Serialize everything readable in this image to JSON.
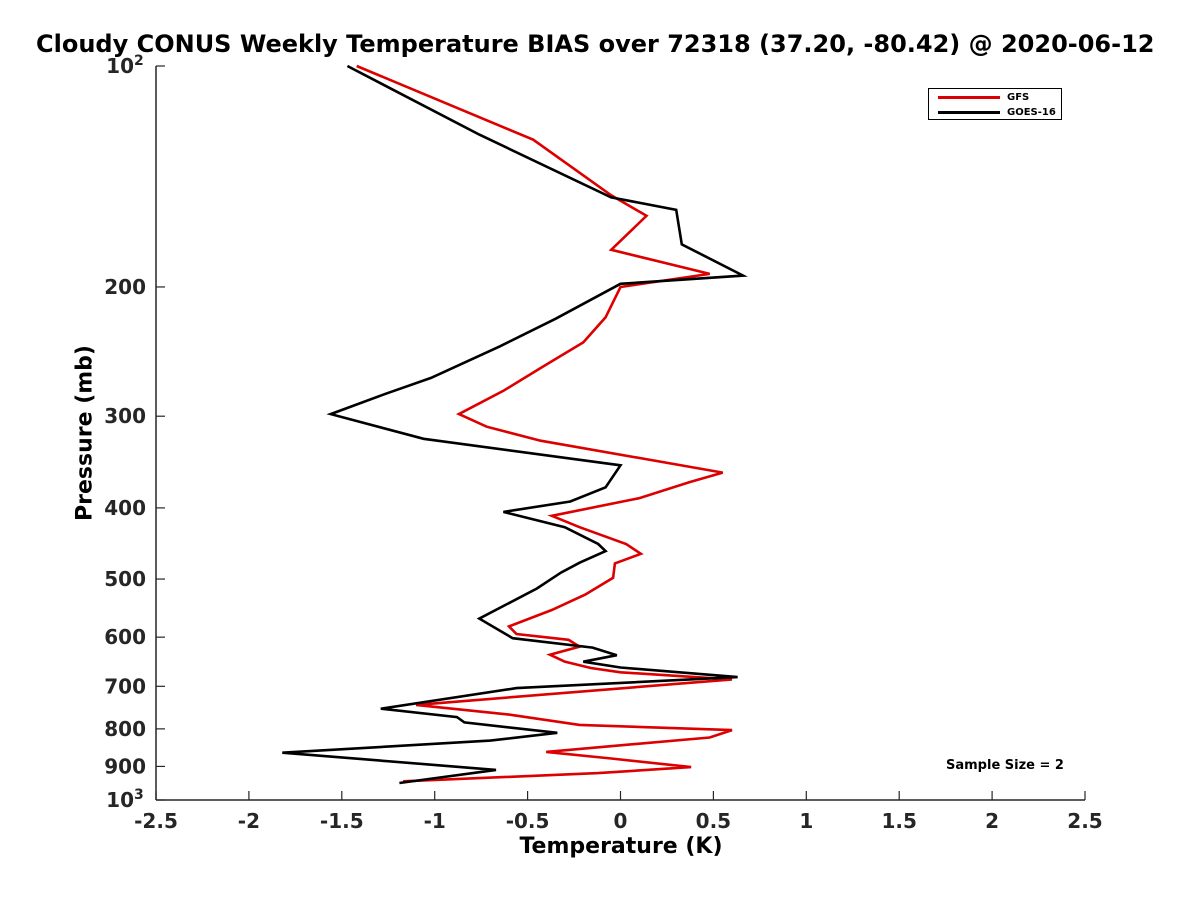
{
  "chart_data": {
    "type": "line",
    "title": "Cloudy CONUS Weekly Temperature BIAS over 72318 (37.20, -80.42) @ 2020-06-12",
    "xlabel": "Temperature (K)",
    "ylabel": "Pressure (mb)",
    "xlim": [
      -2.5,
      2.5
    ],
    "ylim": [
      100,
      1000
    ],
    "y_scale": "log",
    "y_inverted": true,
    "grid": false,
    "legend_position": "top-right",
    "x_ticks": [
      "-2.5",
      "-2",
      "-1.5",
      "-1",
      "-0.5",
      "0",
      "0.5",
      "1",
      "1.5",
      "2",
      "2.5"
    ],
    "y_ticks": [
      {
        "value": 100,
        "label": "10",
        "sup": "2"
      },
      {
        "value": 200,
        "label": "200",
        "sup": ""
      },
      {
        "value": 300,
        "label": "300",
        "sup": ""
      },
      {
        "value": 400,
        "label": "400",
        "sup": ""
      },
      {
        "value": 500,
        "label": "500",
        "sup": ""
      },
      {
        "value": 600,
        "label": "600",
        "sup": ""
      },
      {
        "value": 700,
        "label": "700",
        "sup": ""
      },
      {
        "value": 800,
        "label": "800",
        "sup": ""
      },
      {
        "value": 900,
        "label": "900",
        "sup": ""
      },
      {
        "value": 1000,
        "label": "10",
        "sup": "3"
      }
    ],
    "annotation": "Sample Size = 2",
    "series": [
      {
        "name": "GFS",
        "color": "#dd0000",
        "points": [
          [
            -1.42,
            100
          ],
          [
            -0.47,
            126
          ],
          [
            -0.05,
            150
          ],
          [
            0.14,
            160
          ],
          [
            -0.05,
            178
          ],
          [
            0.48,
            192
          ],
          [
            0.0,
            200
          ],
          [
            -0.08,
            220
          ],
          [
            -0.2,
            238
          ],
          [
            -0.42,
            257
          ],
          [
            -0.63,
            277
          ],
          [
            -0.87,
            298
          ],
          [
            -0.72,
            310
          ],
          [
            -0.43,
            324
          ],
          [
            0.55,
            358
          ],
          [
            0.37,
            369
          ],
          [
            0.1,
            388
          ],
          [
            -0.37,
            410
          ],
          [
            -0.22,
            425
          ],
          [
            0.03,
            448
          ],
          [
            0.11,
            462
          ],
          [
            -0.03,
            476
          ],
          [
            -0.04,
            498
          ],
          [
            -0.19,
            525
          ],
          [
            -0.37,
            551
          ],
          [
            -0.6,
            580
          ],
          [
            -0.56,
            594
          ],
          [
            -0.28,
            605
          ],
          [
            -0.22,
            618
          ],
          [
            -0.38,
            634
          ],
          [
            -0.3,
            648
          ],
          [
            -0.16,
            661
          ],
          [
            0.0,
            670
          ],
          [
            0.6,
            685
          ],
          [
            -1.1,
            742
          ],
          [
            -0.6,
            765
          ],
          [
            -0.22,
            790
          ],
          [
            0.6,
            803
          ],
          [
            0.48,
            822
          ],
          [
            -0.4,
            860
          ],
          [
            -0.05,
            878
          ],
          [
            0.38,
            902
          ],
          [
            -0.12,
            919
          ],
          [
            -1.17,
            943
          ]
        ]
      },
      {
        "name": "GOES-16",
        "color": "#000000",
        "points": [
          [
            -1.47,
            100
          ],
          [
            -0.76,
            124
          ],
          [
            -0.05,
            151
          ],
          [
            0.3,
            157
          ],
          [
            0.33,
            175
          ],
          [
            0.66,
            193
          ],
          [
            0.0,
            198
          ],
          [
            -0.35,
            221
          ],
          [
            -0.65,
            241
          ],
          [
            -1.02,
            266
          ],
          [
            -1.27,
            280
          ],
          [
            -1.56,
            298
          ],
          [
            -1.06,
            322
          ],
          [
            0.0,
            350
          ],
          [
            -0.08,
            375
          ],
          [
            -0.27,
            392
          ],
          [
            -0.63,
            405
          ],
          [
            -0.3,
            425
          ],
          [
            -0.12,
            448
          ],
          [
            -0.08,
            458
          ],
          [
            -0.22,
            475
          ],
          [
            -0.32,
            490
          ],
          [
            -0.45,
            515
          ],
          [
            -0.76,
            566
          ],
          [
            -0.58,
            602
          ],
          [
            -0.15,
            620
          ],
          [
            -0.02,
            635
          ],
          [
            -0.2,
            648
          ],
          [
            0.0,
            660
          ],
          [
            0.63,
            680
          ],
          [
            -0.56,
            704
          ],
          [
            -1.29,
            751
          ],
          [
            -0.88,
            771
          ],
          [
            -0.84,
            784
          ],
          [
            -0.34,
            810
          ],
          [
            -0.7,
            830
          ],
          [
            -1.82,
            862
          ],
          [
            -0.67,
            910
          ],
          [
            -1.19,
            948
          ]
        ]
      }
    ]
  }
}
